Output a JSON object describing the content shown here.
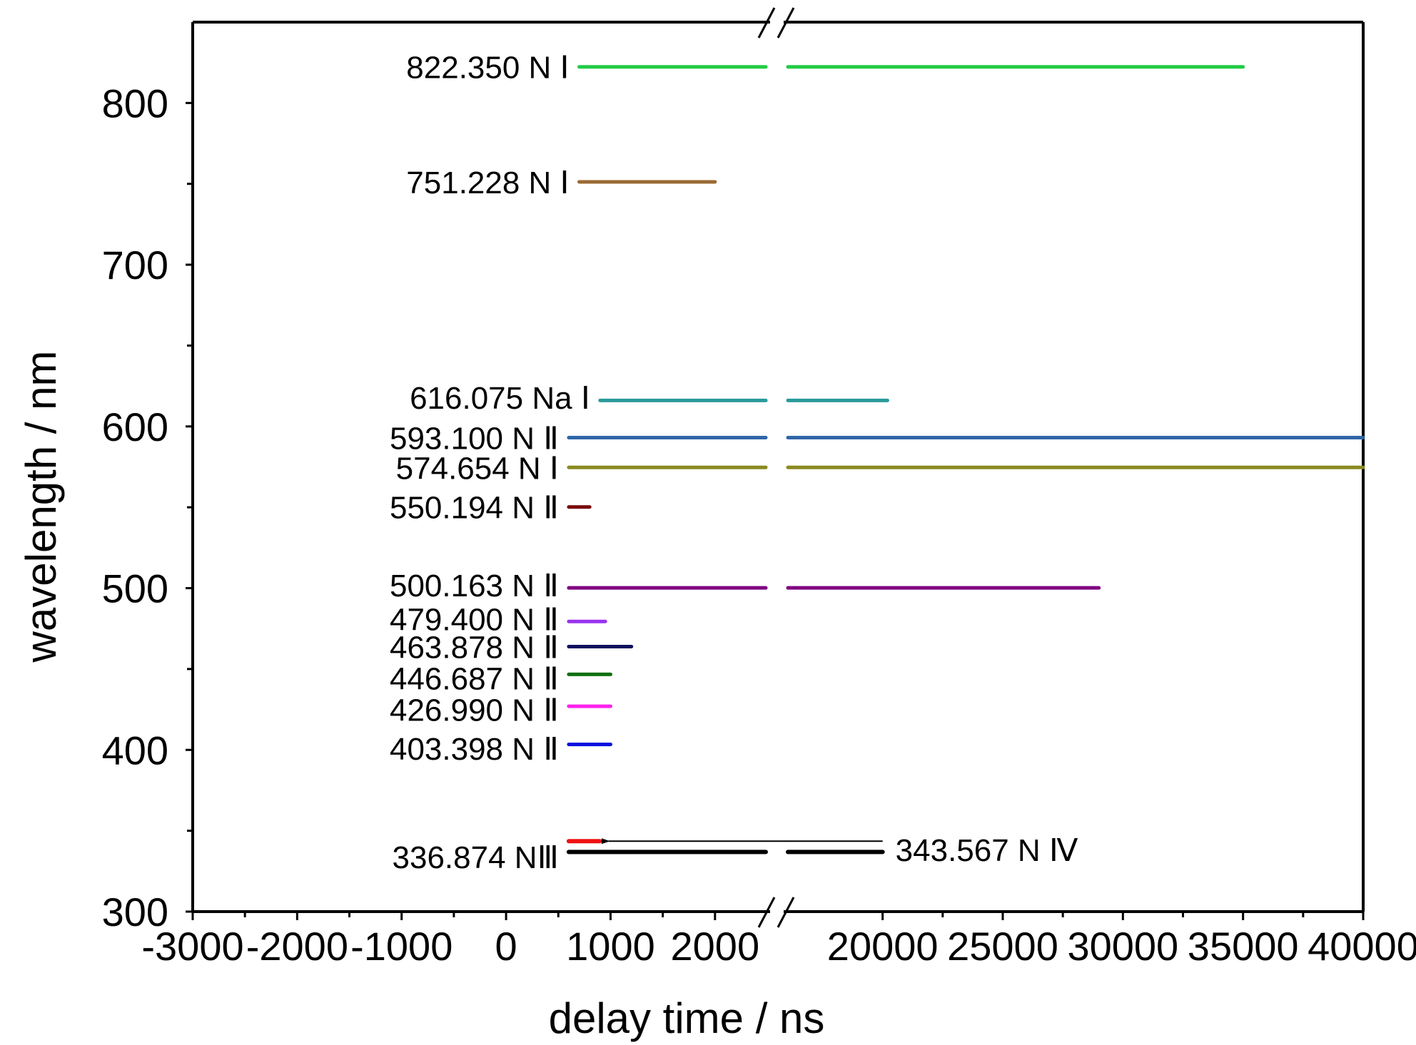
{
  "chart_data": {
    "type": "line",
    "title": "",
    "xlabel": "delay time / ns",
    "ylabel": "wavelength / nm",
    "ylim": [
      300,
      850
    ],
    "y_ticks": [
      300,
      400,
      500,
      600,
      700,
      800
    ],
    "x_axis_break": {
      "segment_left_range": [
        -3000,
        2500
      ],
      "segment_right_range": [
        16000,
        40000
      ]
    },
    "x_ticks": [
      -3000,
      -2000,
      -1000,
      0,
      1000,
      2000,
      20000,
      25000,
      30000,
      35000,
      40000
    ],
    "x_tick_labels": [
      "-3000",
      "-2000",
      "-1000",
      "0",
      "1000",
      "2000",
      "20000",
      "25000",
      "30000",
      "35000",
      "40000"
    ],
    "y_tick_labels": [
      "300",
      "400",
      "500",
      "600",
      "700",
      "800"
    ],
    "grid": false,
    "series": [
      {
        "name": "822.350 N Ⅰ",
        "wavelength": 822.35,
        "start": 700,
        "end": 35000,
        "color": "#22cc44"
      },
      {
        "name": "751.228 N Ⅰ",
        "wavelength": 751.228,
        "start": 700,
        "end": 2000,
        "color": "#9a6a32"
      },
      {
        "name": "616.075 Na Ⅰ",
        "wavelength": 616.075,
        "start": 900,
        "end": 20200,
        "color": "#2a9a9a"
      },
      {
        "name": "593.100 N Ⅱ",
        "wavelength": 593.1,
        "start": 600,
        "end": 40000,
        "color": "#3066a8"
      },
      {
        "name": "574.654 N Ⅰ",
        "wavelength": 574.654,
        "start": 600,
        "end": 40000,
        "color": "#8a8a20"
      },
      {
        "name": "550.194 N Ⅱ",
        "wavelength": 550.194,
        "start": 600,
        "end": 800,
        "color": "#7a0a0a"
      },
      {
        "name": "500.163 N Ⅱ",
        "wavelength": 500.163,
        "start": 600,
        "end": 29000,
        "color": "#800080"
      },
      {
        "name": "479.400 N Ⅱ",
        "wavelength": 479.4,
        "start": 600,
        "end": 950,
        "color": "#9933ee"
      },
      {
        "name": "463.878 N Ⅱ",
        "wavelength": 463.878,
        "start": 600,
        "end": 1200,
        "color": "#101060"
      },
      {
        "name": "446.687 N Ⅱ",
        "wavelength": 446.687,
        "start": 600,
        "end": 1000,
        "color": "#107010"
      },
      {
        "name": "426.990 N Ⅱ",
        "wavelength": 426.99,
        "start": 600,
        "end": 1000,
        "color": "#ff22ee"
      },
      {
        "name": "403.398 N Ⅱ",
        "wavelength": 403.398,
        "start": 600,
        "end": 1000,
        "color": "#0a10dd"
      },
      {
        "name": "336.874 NⅢ",
        "wavelength": 336.874,
        "start": 600,
        "end": 20000,
        "color": "#000000"
      },
      {
        "name": "343.567 N Ⅳ",
        "wavelength": 343.567,
        "start": 600,
        "end": 900,
        "color": "#ee1111"
      }
    ],
    "annotations": [
      {
        "type": "arrow",
        "from_x": 20000,
        "to_x": 900,
        "y": 343.567,
        "label_series": "343.567 N Ⅳ"
      }
    ]
  }
}
